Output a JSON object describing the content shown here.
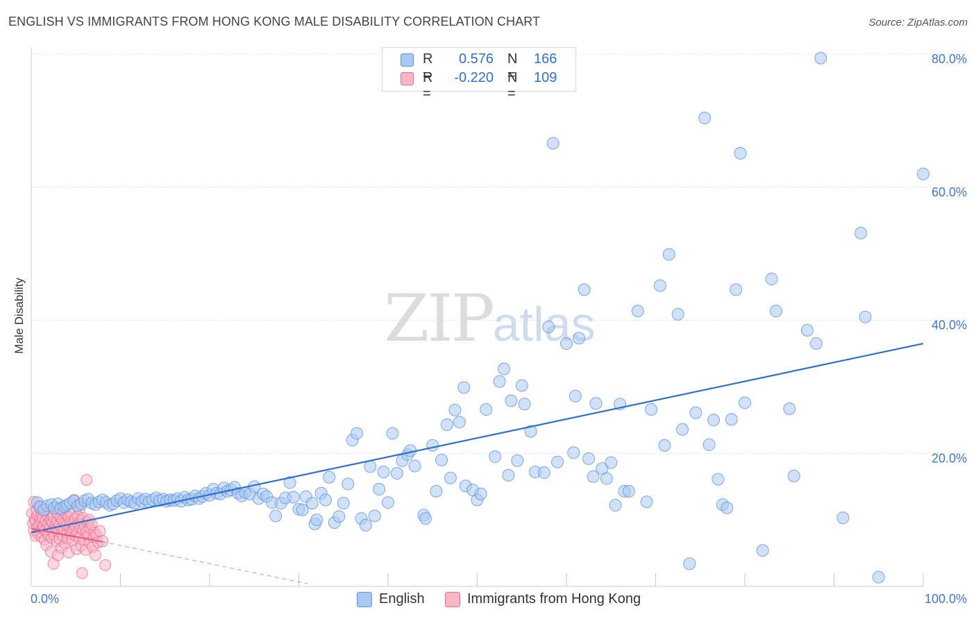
{
  "title": "ENGLISH VS IMMIGRANTS FROM HONG KONG MALE DISABILITY CORRELATION CHART",
  "source": "Source: ZipAtlas.com",
  "watermark": {
    "zip": "ZIP",
    "atlas": "atlas"
  },
  "colors": {
    "blue_fill": "#a9c8f3",
    "blue_stroke": "#5f93dc",
    "blue_line": "#2d6fd1",
    "pink_fill": "#f6b6c8",
    "pink_stroke": "#ec6b92",
    "pink_line": "#e8577f",
    "grid": "#dcdcdc",
    "axis_text": "#3f77cf"
  },
  "legend": {
    "rows": [
      {
        "r_label": "R =",
        "r_value": "0.576",
        "n_label": "N =",
        "n_value": "166",
        "color": "#a9c8f3",
        "border": "#5f93dc"
      },
      {
        "r_label": "R =",
        "r_value": "-0.220",
        "n_label": "N =",
        "n_value": "109",
        "color": "#f6b6c8",
        "border": "#ec6b92"
      }
    ]
  },
  "bottom_legend": [
    {
      "label": "English",
      "color": "#a9c8f3",
      "border": "#5f93dc"
    },
    {
      "label": "Immigrants from Hong Kong",
      "color": "#f6b6c8",
      "border": "#ec6b92"
    }
  ],
  "chart_data": {
    "type": "scatter",
    "title": "ENGLISH VS IMMIGRANTS FROM HONG KONG MALE DISABILITY CORRELATION CHART",
    "xlabel": "",
    "ylabel": "Male Disability",
    "xlim": [
      0,
      100
    ],
    "ylim": [
      0,
      80
    ],
    "x_tick_labels": [
      "0.0%",
      "100.0%"
    ],
    "y_ticks": [
      20,
      40,
      60,
      80
    ],
    "y_tick_labels": [
      "20.0%",
      "40.0%",
      "60.0%",
      "80.0%"
    ],
    "grid": true,
    "series": [
      {
        "name": "English",
        "r": 0.576,
        "n": 166,
        "trend": {
          "x": [
            0,
            100
          ],
          "y": [
            8.1,
            36.5
          ]
        },
        "points": [
          [
            0.7,
            12.6
          ],
          [
            1.0,
            11.9
          ],
          [
            1.4,
            11.5
          ],
          [
            1.8,
            12.1
          ],
          [
            2.3,
            12.3
          ],
          [
            2.6,
            11.8
          ],
          [
            3.0,
            12.4
          ],
          [
            3.3,
            11.7
          ],
          [
            3.7,
            12.0
          ],
          [
            4.0,
            12.2
          ],
          [
            4.4,
            12.5
          ],
          [
            4.8,
            12.8
          ],
          [
            5.2,
            12.1
          ],
          [
            5.6,
            12.4
          ],
          [
            6.0,
            12.9
          ],
          [
            6.4,
            13.1
          ],
          [
            6.8,
            12.5
          ],
          [
            7.2,
            12.3
          ],
          [
            7.6,
            12.7
          ],
          [
            8.0,
            13.0
          ],
          [
            8.4,
            12.6
          ],
          [
            8.8,
            12.2
          ],
          [
            9.2,
            12.4
          ],
          [
            9.6,
            12.9
          ],
          [
            10.0,
            13.2
          ],
          [
            10.4,
            12.6
          ],
          [
            10.8,
            13.0
          ],
          [
            11.2,
            12.7
          ],
          [
            11.6,
            12.5
          ],
          [
            12.0,
            13.2
          ],
          [
            12.4,
            12.8
          ],
          [
            12.8,
            13.1
          ],
          [
            13.2,
            12.7
          ],
          [
            13.6,
            13.0
          ],
          [
            14.0,
            13.3
          ],
          [
            14.4,
            12.9
          ],
          [
            14.8,
            13.1
          ],
          [
            15.2,
            12.8
          ],
          [
            15.6,
            13.0
          ],
          [
            16.0,
            12.9
          ],
          [
            16.4,
            13.2
          ],
          [
            16.8,
            12.8
          ],
          [
            17.2,
            13.4
          ],
          [
            17.6,
            13.0
          ],
          [
            18.0,
            13.1
          ],
          [
            18.4,
            13.6
          ],
          [
            18.8,
            13.2
          ],
          [
            19.2,
            13.5
          ],
          [
            19.6,
            14.0
          ],
          [
            20.0,
            13.7
          ],
          [
            20.4,
            14.6
          ],
          [
            20.8,
            14.0
          ],
          [
            21.2,
            13.9
          ],
          [
            21.6,
            14.8
          ],
          [
            22.0,
            14.3
          ],
          [
            22.4,
            14.5
          ],
          [
            22.8,
            14.9
          ],
          [
            23.2,
            14.0
          ],
          [
            23.6,
            13.6
          ],
          [
            24.0,
            14.1
          ],
          [
            24.5,
            13.9
          ],
          [
            25.0,
            15.0
          ],
          [
            25.5,
            13.2
          ],
          [
            26.0,
            13.9
          ],
          [
            26.4,
            13.5
          ],
          [
            27.0,
            12.6
          ],
          [
            27.4,
            10.6
          ],
          [
            28.0,
            12.5
          ],
          [
            28.5,
            13.3
          ],
          [
            29.0,
            15.6
          ],
          [
            29.4,
            13.4
          ],
          [
            30.0,
            11.6
          ],
          [
            30.4,
            11.5
          ],
          [
            30.8,
            13.5
          ],
          [
            31.5,
            12.5
          ],
          [
            31.8,
            9.4
          ],
          [
            32.0,
            10.0
          ],
          [
            32.5,
            14.0
          ],
          [
            33.0,
            13.0
          ],
          [
            33.4,
            16.4
          ],
          [
            34.0,
            9.6
          ],
          [
            34.5,
            10.5
          ],
          [
            35.0,
            12.5
          ],
          [
            35.5,
            15.4
          ],
          [
            36.0,
            22.0
          ],
          [
            36.5,
            23.0
          ],
          [
            37.0,
            10.2
          ],
          [
            37.5,
            9.2
          ],
          [
            38.0,
            18.0
          ],
          [
            38.5,
            10.6
          ],
          [
            39.0,
            14.6
          ],
          [
            39.5,
            17.2
          ],
          [
            40.0,
            12.6
          ],
          [
            40.5,
            23.0
          ],
          [
            41.0,
            17.0
          ],
          [
            41.6,
            18.9
          ],
          [
            42.2,
            19.8
          ],
          [
            42.5,
            20.4
          ],
          [
            43.0,
            18.1
          ],
          [
            44.0,
            10.7
          ],
          [
            44.2,
            10.2
          ],
          [
            45.0,
            21.2
          ],
          [
            45.4,
            14.3
          ],
          [
            46.0,
            19.0
          ],
          [
            46.6,
            24.3
          ],
          [
            47.0,
            16.3
          ],
          [
            47.5,
            26.5
          ],
          [
            48.0,
            24.7
          ],
          [
            48.5,
            29.9
          ],
          [
            48.7,
            15.1
          ],
          [
            49.5,
            14.5
          ],
          [
            50.0,
            13.0
          ],
          [
            50.4,
            13.9
          ],
          [
            51.0,
            26.6
          ],
          [
            52.0,
            19.5
          ],
          [
            52.5,
            30.8
          ],
          [
            53.0,
            32.7
          ],
          [
            53.5,
            16.7
          ],
          [
            53.8,
            27.9
          ],
          [
            54.5,
            18.9
          ],
          [
            55.0,
            30.2
          ],
          [
            55.3,
            27.4
          ],
          [
            56.0,
            23.3
          ],
          [
            56.5,
            17.2
          ],
          [
            57.5,
            17.1
          ],
          [
            58.0,
            39.0
          ],
          [
            58.5,
            66.6
          ],
          [
            59.0,
            18.7
          ],
          [
            60.0,
            36.5
          ],
          [
            60.8,
            20.1
          ],
          [
            61.0,
            28.6
          ],
          [
            61.4,
            37.3
          ],
          [
            62.0,
            44.6
          ],
          [
            62.5,
            19.2
          ],
          [
            63.0,
            16.5
          ],
          [
            63.3,
            27.5
          ],
          [
            64.0,
            17.7
          ],
          [
            64.5,
            16.2
          ],
          [
            65.0,
            18.6
          ],
          [
            65.5,
            12.2
          ],
          [
            66.0,
            27.4
          ],
          [
            66.5,
            14.3
          ],
          [
            67.0,
            14.3
          ],
          [
            68.0,
            41.4
          ],
          [
            69.0,
            12.7
          ],
          [
            69.5,
            26.6
          ],
          [
            70.5,
            45.2
          ],
          [
            71.0,
            21.2
          ],
          [
            71.5,
            49.9
          ],
          [
            72.5,
            40.9
          ],
          [
            73.0,
            23.6
          ],
          [
            73.8,
            3.4
          ],
          [
            74.5,
            26.1
          ],
          [
            75.5,
            70.4
          ],
          [
            76.0,
            21.3
          ],
          [
            76.5,
            25.0
          ],
          [
            77.0,
            16.1
          ],
          [
            77.5,
            12.3
          ],
          [
            78.0,
            11.8
          ],
          [
            78.5,
            25.1
          ],
          [
            79.0,
            44.6
          ],
          [
            79.5,
            65.1
          ],
          [
            80.0,
            27.6
          ],
          [
            82.0,
            5.4
          ],
          [
            83.0,
            46.2
          ],
          [
            83.5,
            41.4
          ],
          [
            85.0,
            26.7
          ],
          [
            85.5,
            16.6
          ],
          [
            87.0,
            38.5
          ],
          [
            88.0,
            36.5
          ],
          [
            88.5,
            79.4
          ],
          [
            91.0,
            10.3
          ],
          [
            93.0,
            53.1
          ],
          [
            93.5,
            40.5
          ],
          [
            95.0,
            1.4
          ],
          [
            100.0,
            62.0
          ]
        ]
      },
      {
        "name": "Immigrants from Hong Kong",
        "r": -0.22,
        "n": 109,
        "trend": {
          "x": [
            0,
            8
          ],
          "y": [
            8.7,
            6.7
          ]
        },
        "trend_extension": {
          "x": [
            8,
            31
          ],
          "y": [
            6.7,
            0.4
          ]
        },
        "points": [
          [
            0.1,
            11.0
          ],
          [
            0.2,
            9.5
          ],
          [
            0.3,
            8.4
          ],
          [
            0.3,
            12.7
          ],
          [
            0.4,
            10.1
          ],
          [
            0.5,
            7.6
          ],
          [
            0.5,
            9.8
          ],
          [
            0.6,
            11.4
          ],
          [
            0.7,
            8.9
          ],
          [
            0.7,
            10.6
          ],
          [
            0.8,
            7.9
          ],
          [
            0.9,
            9.2
          ],
          [
            0.9,
            12.1
          ],
          [
            1.0,
            10.3
          ],
          [
            1.0,
            8.2
          ],
          [
            1.1,
            9.7
          ],
          [
            1.2,
            11.0
          ],
          [
            1.2,
            7.4
          ],
          [
            1.3,
            8.8
          ],
          [
            1.3,
            10.2
          ],
          [
            1.4,
            9.1
          ],
          [
            1.5,
            7.0
          ],
          [
            1.5,
            11.6
          ],
          [
            1.6,
            8.5
          ],
          [
            1.6,
            9.9
          ],
          [
            1.7,
            6.2
          ],
          [
            1.8,
            10.7
          ],
          [
            1.8,
            8.0
          ],
          [
            1.9,
            9.4
          ],
          [
            2.0,
            7.6
          ],
          [
            2.0,
            11.2
          ],
          [
            2.1,
            8.9
          ],
          [
            2.2,
            10.0
          ],
          [
            2.2,
            5.2
          ],
          [
            2.3,
            7.3
          ],
          [
            2.4,
            9.6
          ],
          [
            2.4,
            8.3
          ],
          [
            2.5,
            3.4
          ],
          [
            2.5,
            10.5
          ],
          [
            2.6,
            7.7
          ],
          [
            2.7,
            9.0
          ],
          [
            2.7,
            11.9
          ],
          [
            2.8,
            8.6
          ],
          [
            2.9,
            6.8
          ],
          [
            2.9,
            9.8
          ],
          [
            3.0,
            4.7
          ],
          [
            3.0,
            10.9
          ],
          [
            3.1,
            8.2
          ],
          [
            3.2,
            9.3
          ],
          [
            3.2,
            7.1
          ],
          [
            3.3,
            10.3
          ],
          [
            3.4,
            8.7
          ],
          [
            3.4,
            5.8
          ],
          [
            3.5,
            9.9
          ],
          [
            3.6,
            7.5
          ],
          [
            3.6,
            11.3
          ],
          [
            3.7,
            8.4
          ],
          [
            3.8,
            9.6
          ],
          [
            3.8,
            6.4
          ],
          [
            3.9,
            10.8
          ],
          [
            4.0,
            8.0
          ],
          [
            4.0,
            9.2
          ],
          [
            4.1,
            7.2
          ],
          [
            4.2,
            10.4
          ],
          [
            4.2,
            5.1
          ],
          [
            4.3,
            8.9
          ],
          [
            4.4,
            9.7
          ],
          [
            4.4,
            7.9
          ],
          [
            4.5,
            11.0
          ],
          [
            4.6,
            8.3
          ],
          [
            4.6,
            6.9
          ],
          [
            4.7,
            9.5
          ],
          [
            4.8,
            13.0
          ],
          [
            4.8,
            8.6
          ],
          [
            4.9,
            10.1
          ],
          [
            5.0,
            7.6
          ],
          [
            5.0,
            9.0
          ],
          [
            5.1,
            5.6
          ],
          [
            5.2,
            10.6
          ],
          [
            5.2,
            8.1
          ],
          [
            5.3,
            9.4
          ],
          [
            5.4,
            7.3
          ],
          [
            5.4,
            11.6
          ],
          [
            5.5,
            8.8
          ],
          [
            5.6,
            6.1
          ],
          [
            5.6,
            9.9
          ],
          [
            5.7,
            2.0
          ],
          [
            5.8,
            8.5
          ],
          [
            5.8,
            10.3
          ],
          [
            5.9,
            7.0
          ],
          [
            6.0,
            9.1
          ],
          [
            6.1,
            5.5
          ],
          [
            6.2,
            16.0
          ],
          [
            6.2,
            8.2
          ],
          [
            6.3,
            9.7
          ],
          [
            6.4,
            7.6
          ],
          [
            6.5,
            10.0
          ],
          [
            6.6,
            6.5
          ],
          [
            6.6,
            8.7
          ],
          [
            6.8,
            9.3
          ],
          [
            6.9,
            5.9
          ],
          [
            7.0,
            7.4
          ],
          [
            7.1,
            8.1
          ],
          [
            7.2,
            4.7
          ],
          [
            7.3,
            7.7
          ],
          [
            7.5,
            6.6
          ],
          [
            7.7,
            8.3
          ],
          [
            8.0,
            6.8
          ],
          [
            8.3,
            3.2
          ]
        ]
      }
    ]
  }
}
